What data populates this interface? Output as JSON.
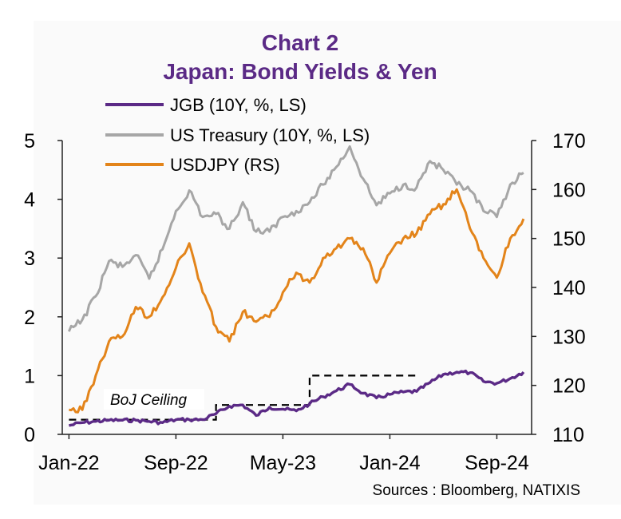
{
  "chart_data": {
    "type": "line",
    "title": "Chart 2",
    "subtitle": "Japan: Bond Yields & Yen",
    "source": "Sources : Bloomberg, NATIXIS",
    "annotation": "BoJ Ceiling",
    "x_tick_labels": [
      "Jan-22",
      "Sep-22",
      "May-23",
      "Jan-24",
      "Sep-24"
    ],
    "x_range": [
      "2022-01",
      "2024-11"
    ],
    "y_left": {
      "range": [
        0,
        5
      ],
      "ticks": [
        "0",
        "1",
        "2",
        "3",
        "4",
        "5"
      ]
    },
    "y_right": {
      "range": [
        110,
        170
      ],
      "ticks": [
        "110",
        "120",
        "130",
        "140",
        "150",
        "160",
        "170"
      ]
    },
    "grid": false,
    "legend_position": "top-left",
    "series": [
      {
        "name": "JGB (10Y, %, LS)",
        "axis": "left",
        "color": "#5b2a86",
        "x": [
          "2022-01",
          "2022-02",
          "2022-03",
          "2022-04",
          "2022-05",
          "2022-06",
          "2022-07",
          "2022-08",
          "2022-09",
          "2022-10",
          "2022-11",
          "2022-12",
          "2023-01",
          "2023-02",
          "2023-03",
          "2023-04",
          "2023-05",
          "2023-06",
          "2023-07",
          "2023-08",
          "2023-09",
          "2023-10",
          "2023-11",
          "2023-12",
          "2024-01",
          "2024-02",
          "2024-03",
          "2024-04",
          "2024-05",
          "2024-06",
          "2024-07",
          "2024-08",
          "2024-09",
          "2024-10",
          "2024-11"
        ],
        "values": [
          0.15,
          0.2,
          0.22,
          0.24,
          0.24,
          0.24,
          0.22,
          0.2,
          0.25,
          0.25,
          0.25,
          0.35,
          0.48,
          0.5,
          0.32,
          0.46,
          0.43,
          0.4,
          0.52,
          0.64,
          0.74,
          0.85,
          0.7,
          0.62,
          0.68,
          0.72,
          0.73,
          0.88,
          1.02,
          1.06,
          1.05,
          0.9,
          0.87,
          0.95,
          1.06
        ]
      },
      {
        "name": "US Treasury (10Y, %, LS)",
        "axis": "left",
        "color": "#a6a6a6",
        "x": [
          "2022-01",
          "2022-02",
          "2022-03",
          "2022-04",
          "2022-05",
          "2022-06",
          "2022-07",
          "2022-08",
          "2022-09",
          "2022-10",
          "2022-11",
          "2022-12",
          "2023-01",
          "2023-02",
          "2023-03",
          "2023-04",
          "2023-05",
          "2023-06",
          "2023-07",
          "2023-08",
          "2023-09",
          "2023-10",
          "2023-11",
          "2023-12",
          "2024-01",
          "2024-02",
          "2024-03",
          "2024-04",
          "2024-05",
          "2024-06",
          "2024-07",
          "2024-08",
          "2024-09",
          "2024-10",
          "2024-11"
        ],
        "values": [
          1.75,
          1.95,
          2.35,
          2.95,
          2.85,
          3.05,
          2.65,
          3.15,
          3.8,
          4.15,
          3.7,
          3.75,
          3.5,
          3.95,
          3.45,
          3.45,
          3.7,
          3.8,
          3.95,
          4.25,
          4.55,
          4.9,
          4.35,
          3.9,
          4.1,
          4.25,
          4.2,
          4.65,
          4.5,
          4.25,
          4.15,
          3.8,
          3.7,
          4.25,
          4.45
        ]
      },
      {
        "name": "USDJPY (RS)",
        "axis": "right",
        "color": "#e3841a",
        "x": [
          "2022-01",
          "2022-02",
          "2022-03",
          "2022-04",
          "2022-05",
          "2022-06",
          "2022-07",
          "2022-08",
          "2022-09",
          "2022-10",
          "2022-11",
          "2022-12",
          "2023-01",
          "2023-02",
          "2023-03",
          "2023-04",
          "2023-05",
          "2023-06",
          "2023-07",
          "2023-08",
          "2023-09",
          "2023-10",
          "2023-11",
          "2023-12",
          "2024-01",
          "2024-02",
          "2024-03",
          "2024-04",
          "2024-05",
          "2024-06",
          "2024-07",
          "2024-08",
          "2024-09",
          "2024-10",
          "2024-11"
        ],
        "values": [
          115,
          115,
          122,
          129,
          130,
          136,
          134,
          138,
          144,
          149,
          139,
          132,
          129,
          135,
          133,
          134,
          139,
          143,
          141,
          146,
          148,
          150,
          148,
          141,
          147,
          150,
          151,
          155,
          157,
          160,
          152,
          146,
          142,
          150,
          154
        ]
      }
    ],
    "boj_ceiling": {
      "axis": "left",
      "segments": [
        {
          "from": "2022-01",
          "to": "2022-12",
          "value": 0.25
        },
        {
          "from": "2022-12",
          "to": "2023-07",
          "value": 0.5
        },
        {
          "from": "2023-07",
          "to": "2024-03",
          "value": 1.0
        }
      ]
    }
  }
}
